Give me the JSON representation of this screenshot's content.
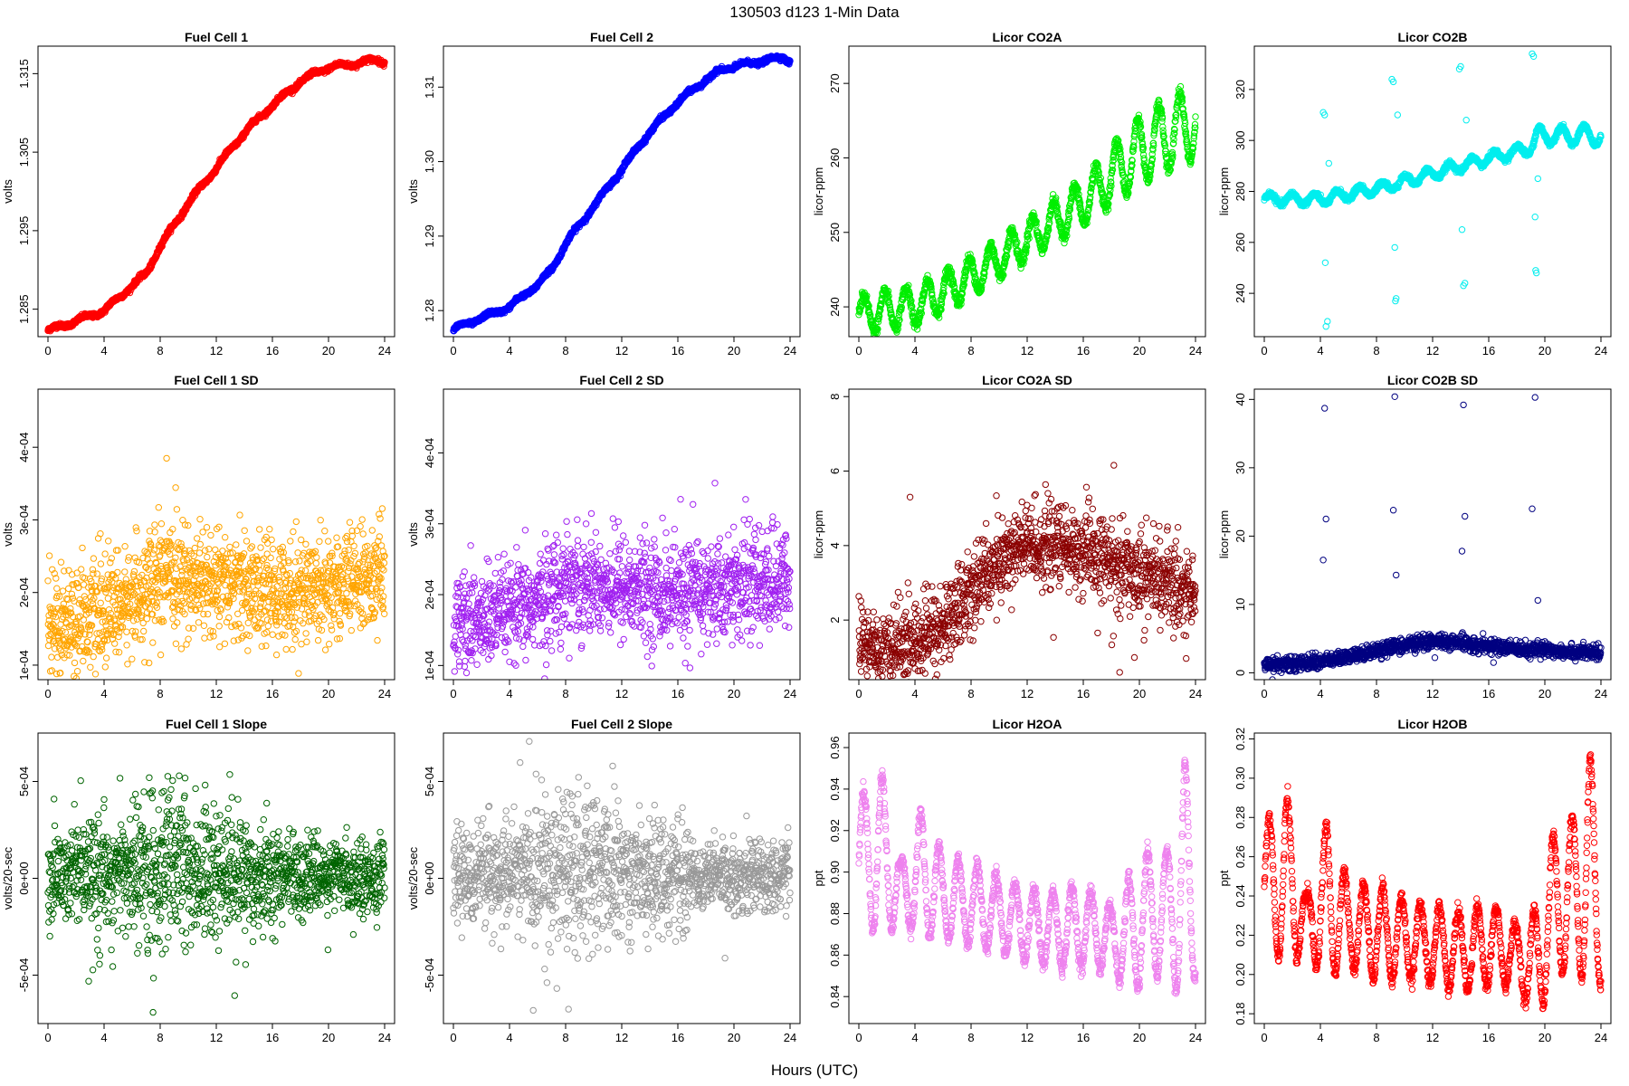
{
  "page": {
    "title": "130503    d123    1-Min Data",
    "xlabel": "Hours (UTC)"
  },
  "chart_data": [
    {
      "key": "fc1",
      "type": "scatter",
      "title": "Fuel Cell 1",
      "ylabel": "volts",
      "color": "#ff0000",
      "xlim": [
        0,
        24
      ],
      "ylim": [
        1.2815,
        1.3185
      ],
      "xticks": [
        0,
        4,
        8,
        12,
        16,
        20,
        24
      ],
      "yticks": [
        1.285,
        1.295,
        1.305,
        1.315
      ],
      "ytick_labels": [
        "1.285",
        "1.295",
        "1.305",
        "1.315"
      ],
      "series": [
        {
          "gen": "trend",
          "x": [
            0,
            2,
            4,
            6,
            7,
            8,
            10,
            12,
            14,
            16,
            18,
            19,
            20,
            22,
            23.5,
            24
          ],
          "y": [
            1.2823,
            1.2835,
            1.2848,
            1.288,
            1.2895,
            1.293,
            1.2985,
            1.303,
            1.3075,
            1.311,
            1.314,
            1.315,
            1.3158,
            1.3163,
            1.3168,
            1.3165
          ],
          "n": 1440,
          "noise": 0.0004
        }
      ]
    },
    {
      "key": "fc2",
      "type": "scatter",
      "title": "Fuel Cell 2",
      "ylabel": "volts",
      "color": "#0000ff",
      "xlim": [
        0,
        24
      ],
      "ylim": [
        1.2765,
        1.3155
      ],
      "xticks": [
        0,
        4,
        8,
        12,
        16,
        20,
        24
      ],
      "yticks": [
        1.28,
        1.29,
        1.3,
        1.31
      ],
      "ytick_labels": [
        "1.28",
        "1.29",
        "1.30",
        "1.31"
      ],
      "series": [
        {
          "gen": "trend",
          "x": [
            0,
            2,
            4,
            6,
            7,
            8,
            10,
            12,
            14,
            16,
            18,
            19,
            20,
            22,
            23.5,
            24
          ],
          "y": [
            1.2775,
            1.279,
            1.2805,
            1.2835,
            1.2855,
            1.289,
            1.294,
            1.299,
            1.304,
            1.308,
            1.311,
            1.3122,
            1.3128,
            1.3135,
            1.314,
            1.3135
          ],
          "n": 1440,
          "noise": 0.0004
        }
      ]
    },
    {
      "key": "co2a",
      "type": "scatter",
      "title": "Licor CO2A",
      "ylabel": "licor-ppm",
      "color": "#00ee00",
      "xlim": [
        0,
        24
      ],
      "ylim": [
        236,
        275
      ],
      "xticks": [
        0,
        4,
        8,
        12,
        16,
        20,
        24
      ],
      "yticks": [
        240,
        250,
        260,
        270
      ],
      "ytick_labels": [
        "240",
        "250",
        "260",
        "270"
      ],
      "series": [
        {
          "gen": "osc",
          "x": [
            0,
            4,
            8,
            12,
            16,
            20,
            24
          ],
          "y": [
            239,
            240,
            244,
            249,
            254,
            261,
            265
          ],
          "amp": [
            2.5,
            2.5,
            2.5,
            2.5,
            3,
            4.5,
            5
          ],
          "period": 1.5,
          "n": 1440,
          "noise": 0.4
        }
      ]
    },
    {
      "key": "co2b",
      "type": "scatter",
      "title": "Licor CO2B",
      "ylabel": "licor-ppm",
      "color": "#00eeee",
      "xlim": [
        0,
        24
      ],
      "ylim": [
        223,
        337
      ],
      "xticks": [
        0,
        4,
        8,
        12,
        16,
        20,
        24
      ],
      "yticks": [
        240,
        260,
        280,
        300,
        320
      ],
      "ytick_labels": [
        "240",
        "260",
        "280",
        "300",
        "320"
      ],
      "series": [
        {
          "gen": "osc",
          "x": [
            0,
            4,
            8,
            12,
            16,
            19,
            19.5,
            24
          ],
          "y": [
            277,
            277,
            281,
            287,
            293,
            297,
            302,
            302
          ],
          "amp": [
            2,
            2,
            2,
            2,
            2,
            2,
            3,
            4
          ],
          "period": 1.6,
          "n": 1440,
          "noise": 0.5
        },
        {
          "gen": "points",
          "x": [
            4.2,
            4.3,
            4.35,
            4.4,
            4.5,
            4.6,
            9.1,
            9.2,
            9.3,
            9.35,
            9.4,
            9.5,
            13.9,
            14.0,
            14.1,
            14.2,
            14.3,
            14.4,
            19.1,
            19.2,
            19.3,
            19.35,
            19.4,
            19.5
          ],
          "y": [
            311,
            310,
            252,
            227,
            229,
            291,
            324,
            323,
            258,
            237,
            238,
            310,
            328,
            329,
            265,
            243,
            244,
            308,
            334,
            333,
            270,
            249,
            248,
            285
          ]
        }
      ]
    },
    {
      "key": "fc1sd",
      "type": "scatter",
      "title": "Fuel Cell 1 SD",
      "ylabel": "volts",
      "color": "#ffa500",
      "xlim": [
        0,
        24
      ],
      "ylim": [
        8e-05,
        0.00048
      ],
      "xticks": [
        0,
        4,
        8,
        12,
        16,
        20,
        24
      ],
      "yticks": [
        0.0001,
        0.0002,
        0.0003,
        0.0004
      ],
      "ytick_labels": [
        "1e-04",
        "2e-04",
        "3e-04",
        "4e-04"
      ],
      "series": [
        {
          "gen": "noise",
          "x": [
            0,
            4,
            6,
            8,
            12,
            16,
            20,
            24
          ],
          "y": [
            0.00016,
            0.00017,
            0.00019,
            0.00022,
            0.00021,
            0.0002,
            0.00021,
            0.00022
          ],
          "n": 1440,
          "noise": 3.5e-05
        }
      ]
    },
    {
      "key": "fc2sd",
      "type": "scatter",
      "title": "Fuel Cell 2 SD",
      "ylabel": "volts",
      "color": "#a020f0",
      "xlim": [
        0,
        24
      ],
      "ylim": [
        8e-05,
        0.00049
      ],
      "xticks": [
        0,
        4,
        8,
        12,
        16,
        20,
        24
      ],
      "yticks": [
        0.0001,
        0.0002,
        0.0003,
        0.0004
      ],
      "ytick_labels": [
        "1e-04",
        "2e-04",
        "3e-04",
        "4e-04"
      ],
      "series": [
        {
          "gen": "noise",
          "x": [
            0,
            4,
            6,
            8,
            12,
            16,
            20,
            24
          ],
          "y": [
            0.00016,
            0.00017,
            0.00019,
            0.00022,
            0.00021,
            0.0002,
            0.00021,
            0.00022
          ],
          "n": 1440,
          "noise": 3.5e-05
        }
      ]
    },
    {
      "key": "co2asd",
      "type": "scatter",
      "title": "Licor CO2A SD",
      "ylabel": "licor-ppm",
      "color": "#8b0000",
      "xlim": [
        0,
        24
      ],
      "ylim": [
        0.4,
        8.2
      ],
      "xticks": [
        0,
        4,
        8,
        12,
        16,
        20,
        24
      ],
      "yticks": [
        2,
        4,
        6,
        8
      ],
      "ytick_labels": [
        "2",
        "4",
        "6",
        "8"
      ],
      "series": [
        {
          "gen": "noise",
          "x": [
            0,
            2,
            4,
            6,
            8,
            10,
            12,
            14,
            16,
            18,
            20,
            22,
            24
          ],
          "y": [
            1.4,
            1.1,
            1.4,
            1.8,
            2.8,
            3.6,
            4.0,
            4.0,
            3.8,
            3.5,
            3.3,
            3.0,
            2.6
          ],
          "n": 1440,
          "noise": 0.55
        }
      ]
    },
    {
      "key": "co2bsd",
      "type": "scatter",
      "title": "Licor CO2B SD",
      "ylabel": "licor-ppm",
      "color": "#000080",
      "xlim": [
        0,
        24
      ],
      "ylim": [
        -1,
        41.5
      ],
      "xticks": [
        0,
        4,
        8,
        12,
        16,
        20,
        24
      ],
      "yticks": [
        0,
        10,
        20,
        30,
        40
      ],
      "ytick_labels": [
        "0",
        "10",
        "20",
        "30",
        "40"
      ],
      "series": [
        {
          "gen": "noise",
          "x": [
            0,
            2,
            4,
            6,
            8,
            10,
            12,
            14,
            16,
            18,
            20,
            22,
            24
          ],
          "y": [
            1.3,
            1.3,
            1.6,
            2.3,
            3.3,
            4.1,
            4.6,
            4.3,
            3.9,
            3.5,
            3.4,
            3.1,
            2.8
          ],
          "n": 1440,
          "noise": 0.5
        },
        {
          "gen": "points",
          "x": [
            4.2,
            4.3,
            4.4,
            9.2,
            9.3,
            9.4,
            14.1,
            14.2,
            14.3,
            19.1,
            19.3,
            19.5
          ],
          "y": [
            16.5,
            38.7,
            22.5,
            23.8,
            40.4,
            14.3,
            17.8,
            39.2,
            22.9,
            24.0,
            40.3,
            10.6
          ]
        }
      ]
    },
    {
      "key": "fc1slope",
      "type": "scatter",
      "title": "Fuel Cell 1 Slope",
      "ylabel": "volts/20-sec",
      "color": "#006400",
      "xlim": [
        0,
        24
      ],
      "ylim": [
        -0.00075,
        0.00075
      ],
      "xticks": [
        0,
        4,
        8,
        12,
        16,
        20,
        24
      ],
      "yticks": [
        -0.0005,
        0,
        0.0005
      ],
      "ytick_labels": [
        "-5e-04",
        "0e+00",
        "5e-04"
      ],
      "series": [
        {
          "gen": "noise",
          "x": [
            0,
            6,
            8,
            12,
            16,
            18,
            24
          ],
          "y": [
            1e-05,
            3e-05,
            4e-05,
            3e-05,
            2e-05,
            1e-05,
            1e-05
          ],
          "n": 1440,
          "noise": 0.00011,
          "spread_x": [
            0,
            5,
            7,
            11,
            15,
            18,
            24
          ],
          "spread_y": [
            1.0,
            1.3,
            2.0,
            1.6,
            1.3,
            0.8,
            0.8
          ]
        }
      ]
    },
    {
      "key": "fc2slope",
      "type": "scatter",
      "title": "Fuel Cell 2 Slope",
      "ylabel": "volts/20-sec",
      "color": "#999999",
      "xlim": [
        0,
        24
      ],
      "ylim": [
        -0.00075,
        0.00075
      ],
      "xticks": [
        0,
        4,
        8,
        12,
        16,
        20,
        24
      ],
      "yticks": [
        -0.0005,
        0,
        0.0005
      ],
      "ytick_labels": [
        "-5e-04",
        "0e+00",
        "5e-04"
      ],
      "series": [
        {
          "gen": "noise",
          "x": [
            0,
            6,
            8,
            12,
            16,
            18,
            24
          ],
          "y": [
            1e-05,
            3e-05,
            4e-05,
            3e-05,
            2e-05,
            1e-05,
            1e-05
          ],
          "n": 1440,
          "noise": 0.00011,
          "spread_x": [
            0,
            5,
            7,
            11,
            15,
            18,
            24
          ],
          "spread_y": [
            1.0,
            1.3,
            2.0,
            1.6,
            1.3,
            0.8,
            0.8
          ]
        }
      ]
    },
    {
      "key": "h2oa",
      "type": "scatter",
      "title": "Licor H2OA",
      "ylabel": "ppt",
      "color": "#ee82ee",
      "xlim": [
        0,
        24
      ],
      "ylim": [
        0.827,
        0.967
      ],
      "xticks": [
        0,
        4,
        8,
        12,
        16,
        20,
        24
      ],
      "yticks": [
        0.84,
        0.86,
        0.88,
        0.9,
        0.92,
        0.94,
        0.96
      ],
      "ytick_labels": [
        "0.84",
        "0.86",
        "0.88",
        "0.90",
        "0.92",
        "0.94",
        "0.96"
      ],
      "series": [
        {
          "gen": "osc",
          "x": [
            0,
            1.5,
            3,
            4.5,
            6,
            8,
            10,
            12,
            14,
            16,
            18,
            19.5,
            20.5,
            22,
            23.2,
            24
          ],
          "y": [
            0.905,
            0.91,
            0.89,
            0.9,
            0.888,
            0.885,
            0.88,
            0.875,
            0.872,
            0.874,
            0.868,
            0.87,
            0.88,
            0.88,
            0.895,
            0.88
          ],
          "amp": [
            0.03,
            0.04,
            0.015,
            0.03,
            0.02,
            0.02,
            0.018,
            0.018,
            0.018,
            0.02,
            0.015,
            0.03,
            0.03,
            0.03,
            0.06,
            0.03
          ],
          "period": 1.35,
          "n": 1440,
          "noise": 0.002
        }
      ]
    },
    {
      "key": "h2ob",
      "type": "scatter",
      "title": "Licor H2OB",
      "ylabel": "ppt",
      "color": "#ff0000",
      "xlim": [
        0,
        24
      ],
      "ylim": [
        0.175,
        0.323
      ],
      "xticks": [
        0,
        4,
        8,
        12,
        16,
        20,
        24
      ],
      "yticks": [
        0.18,
        0.2,
        0.22,
        0.24,
        0.26,
        0.28,
        0.3,
        0.32
      ],
      "ytick_labels": [
        "0.18",
        "0.20",
        "0.22",
        "0.24",
        "0.26",
        "0.28",
        "0.30",
        "0.32"
      ],
      "series": [
        {
          "gen": "osc",
          "x": [
            0,
            1.5,
            3,
            4.5,
            6,
            8,
            10,
            12,
            14,
            16,
            18,
            19.5,
            20.5,
            22,
            23.2,
            24
          ],
          "y": [
            0.245,
            0.25,
            0.225,
            0.238,
            0.225,
            0.222,
            0.218,
            0.215,
            0.212,
            0.215,
            0.21,
            0.205,
            0.235,
            0.24,
            0.255,
            0.225
          ],
          "amp": [
            0.03,
            0.045,
            0.015,
            0.04,
            0.02,
            0.025,
            0.02,
            0.02,
            0.02,
            0.022,
            0.015,
            0.03,
            0.035,
            0.04,
            0.06,
            0.03
          ],
          "period": 1.35,
          "n": 1440,
          "noise": 0.002
        }
      ]
    }
  ]
}
